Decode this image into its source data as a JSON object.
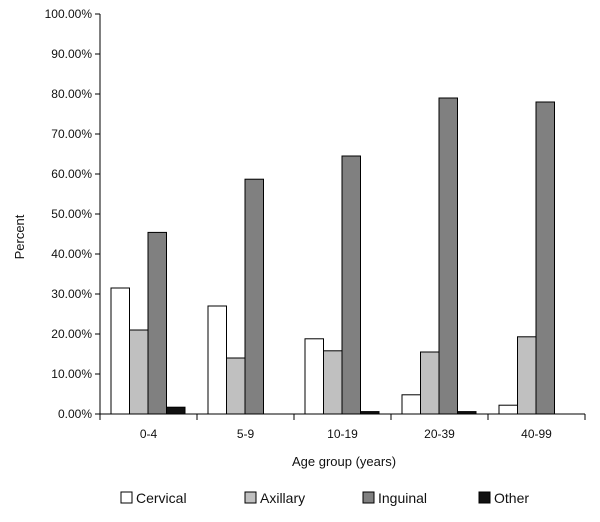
{
  "chart_data": {
    "type": "bar",
    "title": "",
    "xlabel": "Age group (years)",
    "ylabel": "Percent",
    "ylim": [
      0,
      100
    ],
    "ytick_step": 10,
    "ytick_format": "percent_2dp",
    "categories": [
      "0-4",
      "5-9",
      "10-19",
      "20-39",
      "40-99"
    ],
    "series": [
      {
        "name": "Cervical",
        "color": "#ffffff",
        "values": [
          31.5,
          27.0,
          18.8,
          4.8,
          2.2
        ]
      },
      {
        "name": "Axillary",
        "color": "#c0c0c0",
        "values": [
          21.0,
          14.0,
          15.8,
          15.5,
          19.3
        ]
      },
      {
        "name": "Inguinal",
        "color": "#808080",
        "values": [
          45.4,
          58.7,
          64.5,
          79.0,
          78.0
        ]
      },
      {
        "name": "Other",
        "color": "#111111",
        "values": [
          1.7,
          0.0,
          0.6,
          0.6,
          0.0
        ]
      }
    ],
    "legend_position": "bottom",
    "grid": false
  }
}
